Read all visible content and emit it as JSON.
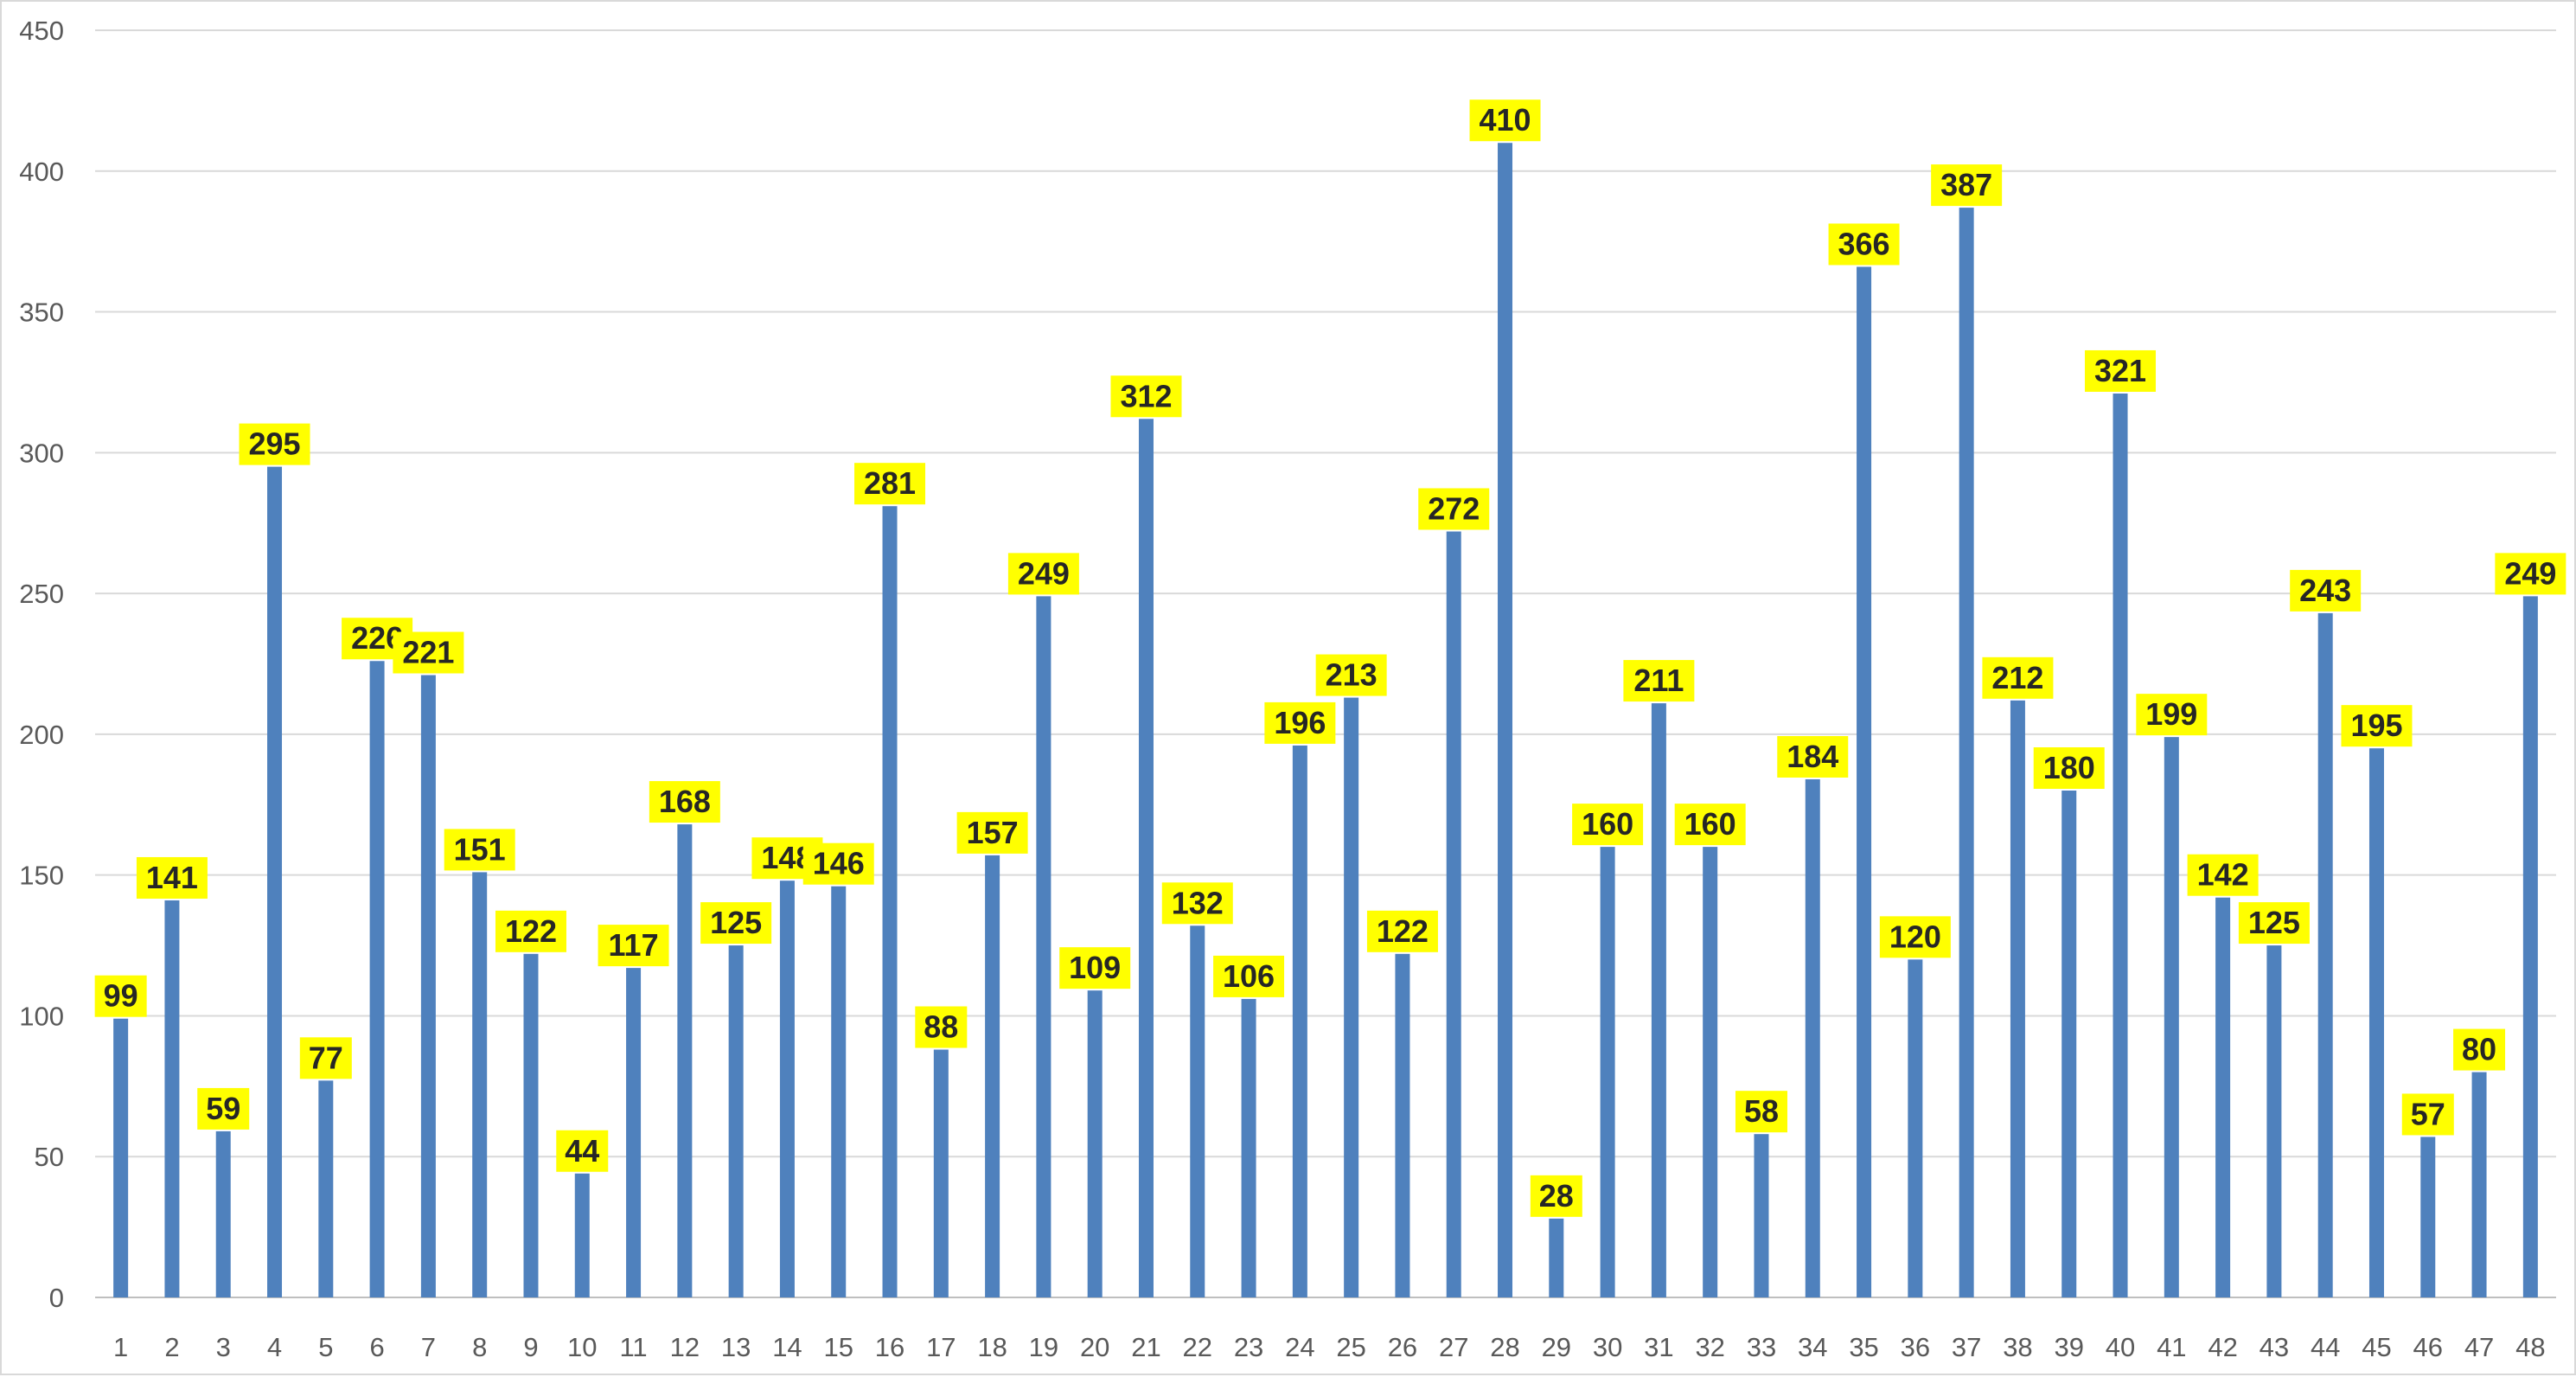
{
  "chart_data": {
    "type": "bar",
    "title": "",
    "xlabel": "",
    "ylabel": "",
    "ylim": [
      0,
      450
    ],
    "yticks": [
      0,
      50,
      100,
      150,
      200,
      250,
      300,
      350,
      400,
      450
    ],
    "grid": true,
    "legend": "none",
    "categories": [
      "1",
      "2",
      "3",
      "4",
      "5",
      "6",
      "7",
      "8",
      "9",
      "10",
      "11",
      "12",
      "13",
      "14",
      "15",
      "16",
      "17",
      "18",
      "19",
      "20",
      "21",
      "22",
      "23",
      "24",
      "25",
      "26",
      "27",
      "28",
      "29",
      "30",
      "31",
      "32",
      "33",
      "34",
      "35",
      "36",
      "37",
      "38",
      "39",
      "40",
      "41",
      "42",
      "43",
      "44",
      "45",
      "46",
      "47",
      "48"
    ],
    "values": [
      99,
      141,
      59,
      295,
      77,
      226,
      221,
      151,
      122,
      44,
      117,
      168,
      125,
      148,
      146,
      281,
      88,
      157,
      249,
      109,
      312,
      132,
      106,
      196,
      213,
      122,
      272,
      410,
      28,
      160,
      211,
      160,
      58,
      184,
      366,
      120,
      387,
      212,
      180,
      321,
      199,
      142,
      125,
      243,
      195,
      57,
      80,
      249
    ],
    "colors": {
      "bar": "#4f81bd",
      "label_bg": "#ffff00",
      "grid": "#d9d9d9"
    }
  }
}
